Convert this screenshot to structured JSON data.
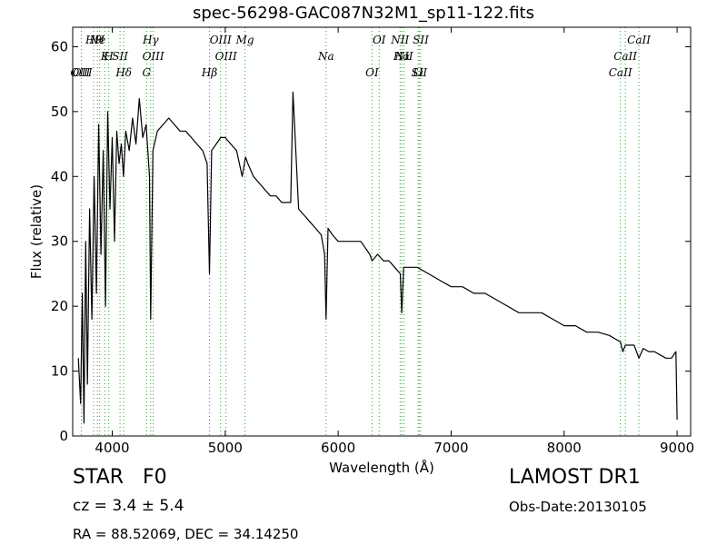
{
  "header": {
    "title": "spec-56298-GAC087N32M1_sp11-122.fits"
  },
  "info": {
    "class_label": "STAR",
    "subclass_label": "F0",
    "cz_text": "cz = 3.4 ± 5.4",
    "radec_text": "RA = 88.52069, DEC = 34.14250",
    "survey_text": "LAMOST DR1",
    "obsdate_text": "Obs-Date:20130105"
  },
  "chart_data": {
    "type": "line",
    "title": "spec-56298-GAC087N32M1_sp11-122.fits",
    "xlabel": "Wavelength (Å)",
    "ylabel": "Flux (relative)",
    "xlim": [
      3650,
      9120
    ],
    "ylim": [
      0,
      63
    ],
    "xticks": [
      4000,
      5000,
      6000,
      7000,
      8000,
      9000
    ],
    "yticks": [
      0,
      10,
      20,
      30,
      40,
      50,
      60
    ],
    "grid": false,
    "line_color": "#000000",
    "marker_color": "#2ca02c",
    "series": [
      {
        "x": [
          3700,
          3720,
          3735,
          3750,
          3765,
          3780,
          3800,
          3820,
          3840,
          3860,
          3880,
          3900,
          3920,
          3940,
          3960,
          3980,
          4000,
          4020,
          4040,
          4060,
          4080,
          4100,
          4120,
          4150,
          4180,
          4210,
          4240,
          4270,
          4300,
          4330,
          4340,
          4360,
          4400,
          4450,
          4500,
          4550,
          4600,
          4650,
          4700,
          4750,
          4800,
          4840,
          4861,
          4880,
          4920,
          4960,
          5000,
          5050,
          5100,
          5150,
          5180,
          5200,
          5250,
          5300,
          5350,
          5400,
          5450,
          5500,
          5550,
          5580,
          5600,
          5650,
          5700,
          5750,
          5800,
          5850,
          5880,
          5893,
          5910,
          5950,
          6000,
          6100,
          6200,
          6280,
          6300,
          6350,
          6400,
          6450,
          6500,
          6550,
          6563,
          6580,
          6620,
          6700,
          6800,
          6900,
          7000,
          7100,
          7200,
          7300,
          7400,
          7500,
          7600,
          7700,
          7800,
          7900,
          8000,
          8100,
          8200,
          8300,
          8400,
          8450,
          8498,
          8520,
          8542,
          8580,
          8620,
          8662,
          8700,
          8750,
          8800,
          8850,
          8900,
          8950,
          8990,
          9000
        ],
        "y": [
          12,
          5,
          22,
          2,
          30,
          8,
          35,
          18,
          40,
          22,
          48,
          28,
          44,
          20,
          50,
          35,
          46,
          30,
          47,
          42,
          45,
          40,
          47,
          44,
          49,
          45,
          52,
          46,
          48,
          40,
          18,
          44,
          47,
          48,
          49,
          48,
          47,
          47,
          46,
          45,
          44,
          42,
          25,
          44,
          45,
          46,
          46,
          45,
          44,
          40,
          43,
          42,
          40,
          39,
          38,
          37,
          37,
          36,
          36,
          36,
          53,
          35,
          34,
          33,
          32,
          31,
          28,
          18,
          32,
          31,
          30,
          30,
          30,
          28,
          27,
          28,
          27,
          27,
          26,
          25,
          19,
          26,
          26,
          26,
          25,
          24,
          23,
          23,
          22,
          22,
          21,
          20,
          19,
          19,
          19,
          18,
          17,
          17,
          16,
          16,
          15.5,
          15,
          14.5,
          13,
          14,
          14,
          14,
          12,
          13.5,
          13,
          13,
          12.5,
          12,
          12,
          13,
          2.5
        ]
      }
    ],
    "lines": [
      {
        "label": "H9",
        "w": 3835
      },
      {
        "label": "K",
        "w": 3934
      },
      {
        "label": "OIII",
        "w": 3727
      },
      {
        "label": "Ne",
        "w": 3869
      },
      {
        "label": "H",
        "w": 3969
      },
      {
        "label": "OII",
        "w": 3727
      },
      {
        "label": "H",
        "w": 3889
      },
      {
        "label": "SII",
        "w": 4069
      },
      {
        "label": "Hδ",
        "w": 4102
      },
      {
        "label": "Hγ",
        "w": 4340
      },
      {
        "label": "OIII",
        "w": 4363
      },
      {
        "label": "G",
        "w": 4304
      },
      {
        "label": "OIII",
        "w": 4959
      },
      {
        "label": "OIII",
        "w": 5007
      },
      {
        "label": "Hβ",
        "w": 4861
      },
      {
        "label": "Mg",
        "w": 5175
      },
      {
        "label": "Na",
        "w": 5893
      },
      {
        "label": "OI",
        "w": 6300
      },
      {
        "label": "OI",
        "w": 6363
      },
      {
        "label": "Hα",
        "w": 6563
      },
      {
        "label": "SII",
        "w": 6717
      },
      {
        "label": "NII",
        "w": 6548
      },
      {
        "label": "NII",
        "w": 6583
      },
      {
        "label": "Li",
        "w": 6708
      },
      {
        "label": "SII",
        "w": 6731
      },
      {
        "label": "CaII",
        "w": 8542
      },
      {
        "label": "CaII",
        "w": 8498
      },
      {
        "label": "CaII",
        "w": 8662
      }
    ]
  }
}
